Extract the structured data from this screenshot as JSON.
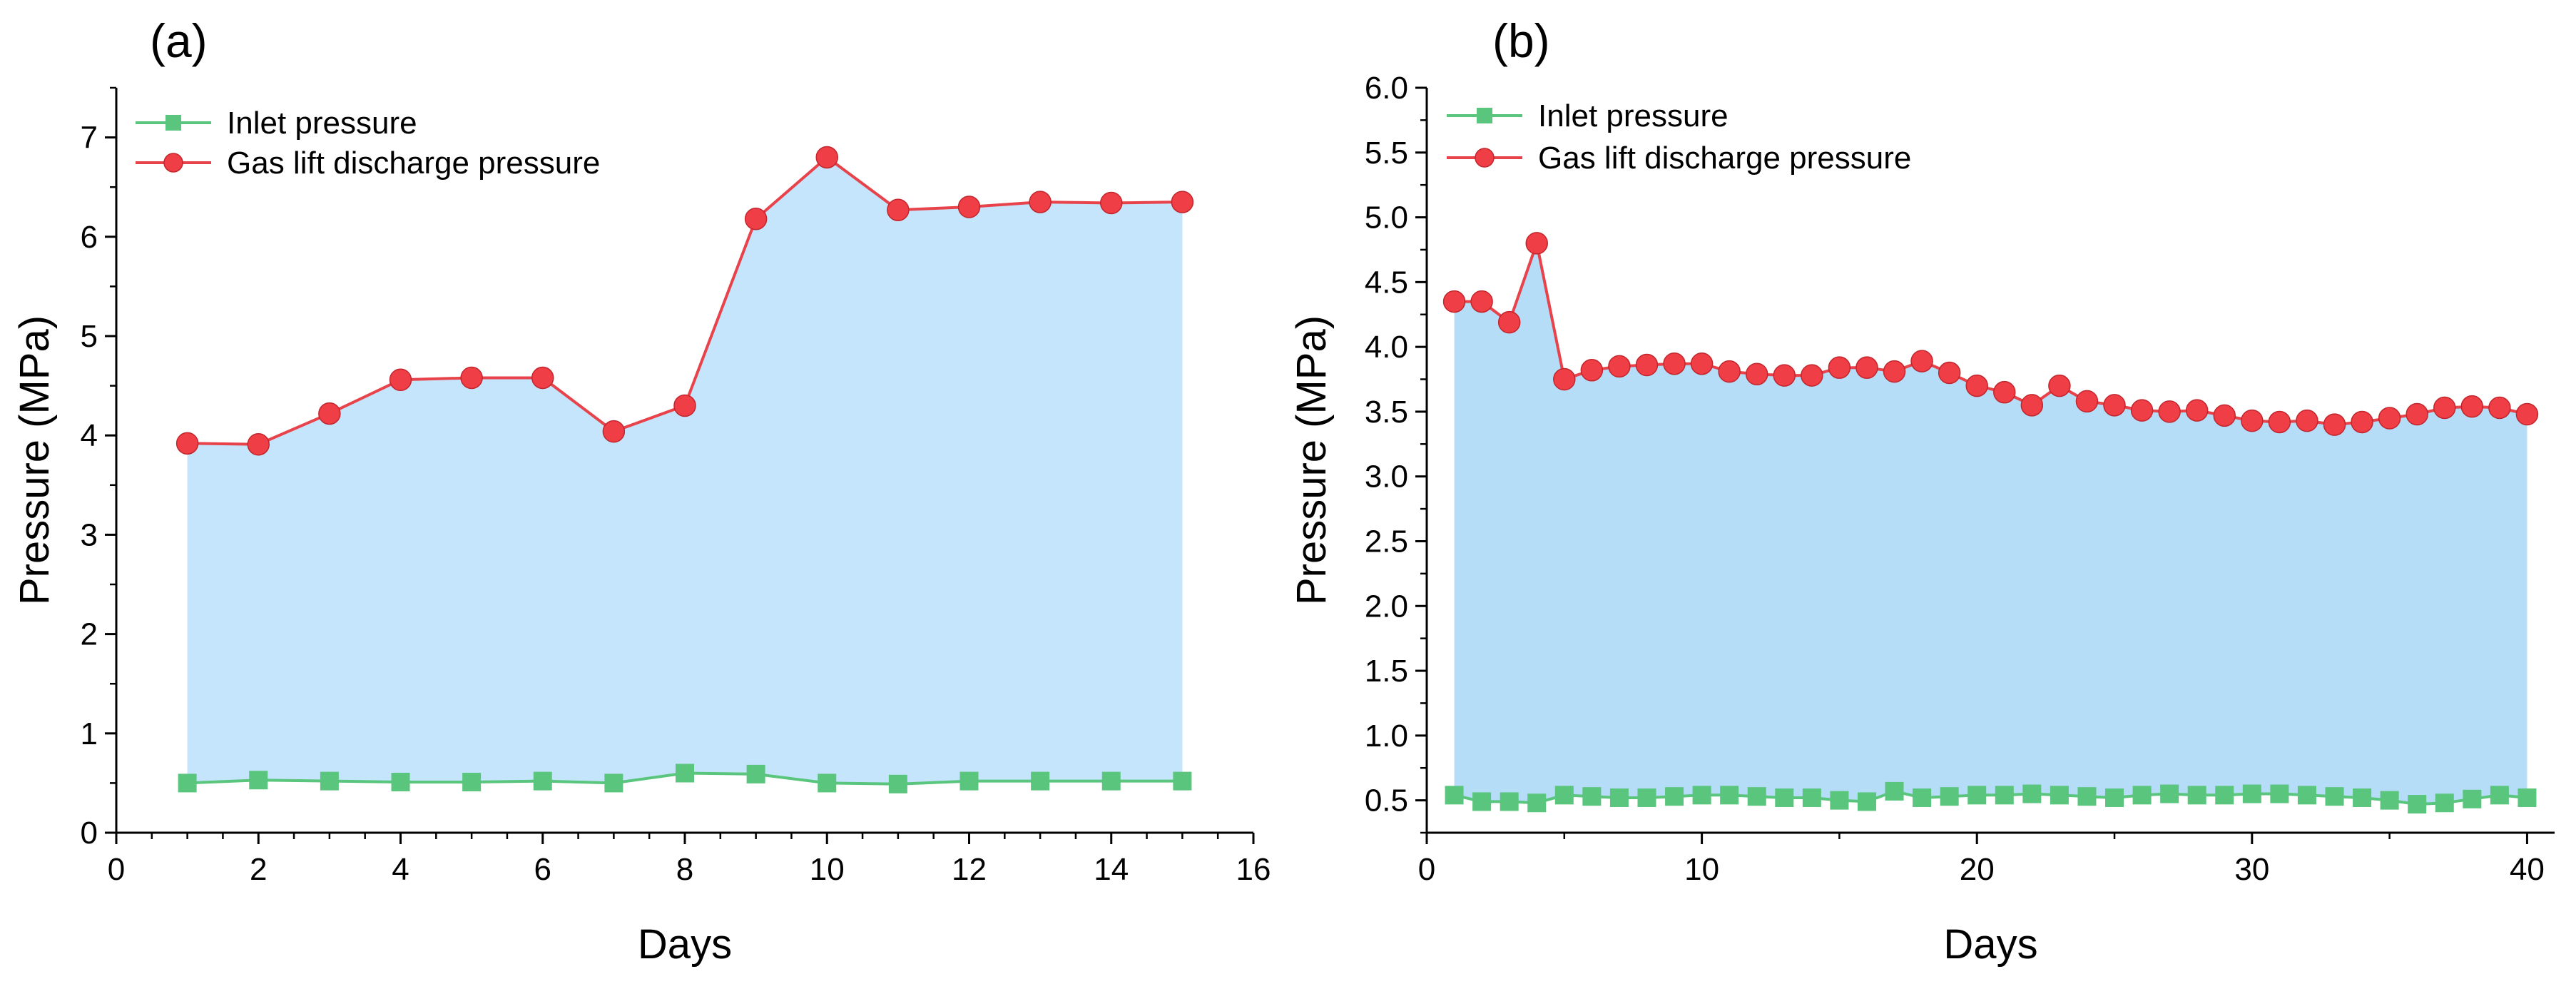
{
  "chart_data": [
    {
      "type": "line",
      "panel_label": "(a)",
      "xlabel": "Days",
      "ylabel": "Pressure (MPa)",
      "xlim": [
        0,
        16
      ],
      "ylim": [
        0,
        7.5
      ],
      "xticks": [
        0,
        2,
        4,
        6,
        8,
        10,
        12,
        14,
        16
      ],
      "yticks": [
        0,
        1,
        2,
        3,
        4,
        5,
        6,
        7
      ],
      "x_tick_labels": [
        "0",
        "2",
        "4",
        "6",
        "8",
        "10",
        "12",
        "14",
        "16"
      ],
      "y_tick_labels": [
        "0",
        "1",
        "2",
        "3",
        "4",
        "5",
        "6",
        "7"
      ],
      "legend_position": "top-left",
      "x": [
        1,
        2,
        3,
        4,
        5,
        6,
        7,
        8,
        9,
        10,
        11,
        12,
        13,
        14,
        15
      ],
      "series": [
        {
          "name": "Inlet pressure",
          "marker": "square",
          "color": "#5ac57c",
          "fill_color": "#5ac57c",
          "values": [
            0.5,
            0.53,
            0.52,
            0.51,
            0.51,
            0.52,
            0.5,
            0.6,
            0.59,
            0.5,
            0.49,
            0.52,
            0.52,
            0.52,
            0.52
          ]
        },
        {
          "name": "Gas lift discharge pressure",
          "marker": "circle",
          "color": "#e8424a",
          "fill_color": "#ef3e45",
          "values": [
            3.92,
            3.91,
            4.22,
            4.56,
            4.58,
            4.58,
            4.04,
            4.3,
            6.18,
            6.8,
            6.27,
            6.3,
            6.35,
            6.34,
            6.35
          ]
        }
      ],
      "area_between_series_color": "#c4e5fb"
    },
    {
      "type": "line",
      "panel_label": "(b)",
      "xlabel": "Days",
      "ylabel": "Pressure (MPa)",
      "xlim": [
        0,
        41
      ],
      "ylim": [
        0.25,
        6.0
      ],
      "xticks": [
        0,
        10,
        20,
        30,
        40
      ],
      "yticks": [
        0.5,
        1.0,
        1.5,
        2.0,
        2.5,
        3.0,
        3.5,
        4.0,
        4.5,
        5.0,
        5.5,
        6.0
      ],
      "x_tick_labels": [
        "0",
        "10",
        "20",
        "30",
        "40"
      ],
      "y_tick_labels": [
        "0.5",
        "1.0",
        "1.5",
        "2.0",
        "2.5",
        "3.0",
        "3.5",
        "4.0",
        "4.5",
        "5.0",
        "5.5",
        "6.0"
      ],
      "legend_position": "top-left",
      "x": [
        1,
        2,
        3,
        4,
        5,
        6,
        7,
        8,
        9,
        10,
        11,
        12,
        13,
        14,
        15,
        16,
        17,
        18,
        19,
        20,
        21,
        22,
        23,
        24,
        25,
        26,
        27,
        28,
        29,
        30,
        31,
        32,
        33,
        34,
        35,
        36,
        37,
        38,
        39,
        40
      ],
      "series": [
        {
          "name": "Inlet pressure",
          "marker": "square",
          "color": "#5ac57c",
          "fill_color": "#5ac57c",
          "values": [
            0.54,
            0.49,
            0.49,
            0.48,
            0.54,
            0.53,
            0.52,
            0.52,
            0.53,
            0.54,
            0.54,
            0.53,
            0.52,
            0.52,
            0.5,
            0.49,
            0.57,
            0.52,
            0.53,
            0.54,
            0.54,
            0.55,
            0.54,
            0.53,
            0.52,
            0.54,
            0.55,
            0.54,
            0.54,
            0.55,
            0.55,
            0.54,
            0.53,
            0.52,
            0.5,
            0.47,
            0.48,
            0.51,
            0.54,
            0.52
          ]
        },
        {
          "name": "Gas lift discharge pressure",
          "marker": "circle",
          "color": "#e8424a",
          "fill_color": "#ef3e45",
          "values": [
            4.35,
            4.35,
            4.19,
            4.8,
            3.75,
            3.82,
            3.85,
            3.86,
            3.87,
            3.87,
            3.81,
            3.79,
            3.78,
            3.78,
            3.84,
            3.84,
            3.81,
            3.89,
            3.8,
            3.7,
            3.65,
            3.55,
            3.7,
            3.58,
            3.55,
            3.51,
            3.5,
            3.51,
            3.47,
            3.43,
            3.42,
            3.43,
            3.4,
            3.42,
            3.45,
            3.48,
            3.53,
            3.54,
            3.53,
            3.48
          ]
        }
      ],
      "area_between_series_color": "#b5ddf8"
    }
  ]
}
